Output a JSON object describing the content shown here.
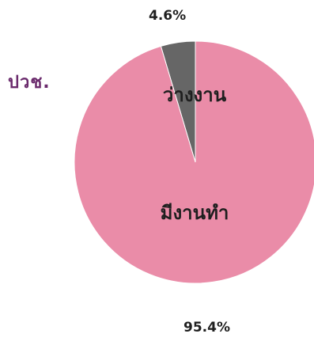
{
  "side_label": "ปวช.",
  "chart_data": {
    "type": "pie",
    "title": "",
    "slices": [
      {
        "label": "ว่างงาน",
        "value": 4.6,
        "value_label": "4.6%",
        "color": "#666666"
      },
      {
        "label": "มีงานทำ",
        "value": 95.4,
        "value_label": "95.4%",
        "color": "#ea8ca8"
      }
    ],
    "legend": "none"
  }
}
